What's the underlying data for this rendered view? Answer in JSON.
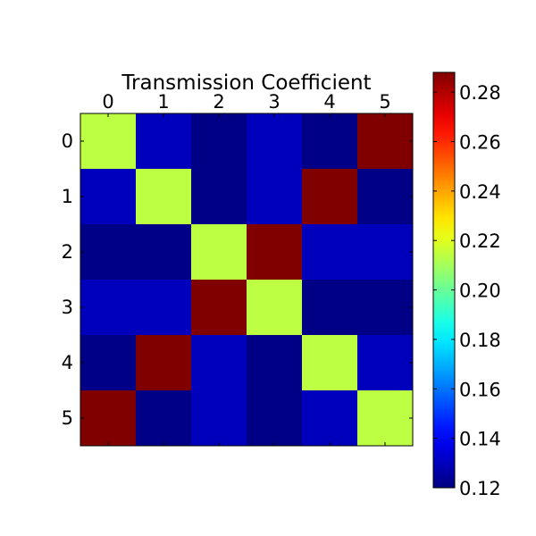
{
  "chart_data": {
    "type": "heatmap",
    "title": "Transmission Coefficient",
    "xlabel": "",
    "ylabel": "",
    "x_categories": [
      "0",
      "1",
      "2",
      "3",
      "4",
      "5"
    ],
    "y_categories": [
      "0",
      "1",
      "2",
      "3",
      "4",
      "5"
    ],
    "x_tick_position": "top",
    "values": [
      [
        0.214,
        0.13,
        0.121,
        0.13,
        0.121,
        0.288
      ],
      [
        0.13,
        0.214,
        0.121,
        0.13,
        0.288,
        0.121
      ],
      [
        0.121,
        0.121,
        0.214,
        0.288,
        0.13,
        0.13
      ],
      [
        0.13,
        0.13,
        0.288,
        0.214,
        0.121,
        0.121
      ],
      [
        0.121,
        0.288,
        0.13,
        0.121,
        0.214,
        0.13
      ],
      [
        0.288,
        0.121,
        0.13,
        0.121,
        0.13,
        0.214
      ]
    ],
    "vmin": 0.12,
    "vmax": 0.288,
    "colormap": "jet",
    "colorbar": {
      "position": "right",
      "ticks": [
        0.12,
        0.14,
        0.16,
        0.18,
        0.2,
        0.22,
        0.24,
        0.26,
        0.28
      ],
      "tick_labels": [
        "0.12",
        "0.14",
        "0.16",
        "0.18",
        "0.20",
        "0.22",
        "0.24",
        "0.26",
        "0.28"
      ]
    },
    "grid": false
  }
}
